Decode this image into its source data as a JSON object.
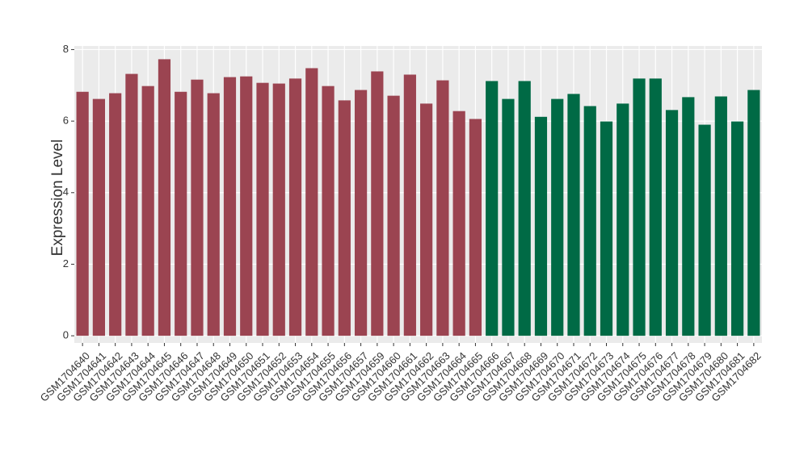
{
  "chart_data": {
    "type": "bar",
    "y_label": "Expression Level",
    "categories": [
      "GSM1704640",
      "GSM1704641",
      "GSM1704642",
      "GSM1704643",
      "GSM1704644",
      "GSM1704645",
      "GSM1704646",
      "GSM1704647",
      "GSM1704648",
      "GSM1704649",
      "GSM1704650",
      "GSM1704651",
      "GSM1704652",
      "GSM1704653",
      "GSM1704654",
      "GSM1704655",
      "GSM1704656",
      "GSM1704657",
      "GSM1704659",
      "GSM1704660",
      "GSM1704661",
      "GSM1704662",
      "GSM1704663",
      "GSM1704664",
      "GSM1704665",
      "GSM1704666",
      "GSM1704667",
      "GSM1704668",
      "GSM1704669",
      "GSM1704670",
      "GSM1704671",
      "GSM1704672",
      "GSM1704673",
      "GSM1704674",
      "GSM1704675",
      "GSM1704676",
      "GSM1704677",
      "GSM1704678",
      "GSM1704679",
      "GSM1704680",
      "GSM1704681",
      "GSM1704682"
    ],
    "values": [
      6.82,
      6.62,
      6.78,
      7.32,
      6.98,
      7.73,
      6.82,
      7.16,
      6.78,
      7.23,
      7.25,
      7.07,
      7.05,
      7.19,
      7.48,
      6.98,
      6.58,
      6.87,
      7.39,
      6.71,
      7.3,
      6.49,
      7.14,
      6.28,
      6.06,
      7.12,
      6.62,
      7.12,
      6.12,
      6.62,
      6.76,
      6.42,
      5.99,
      6.49,
      7.19,
      7.19,
      6.31,
      6.67,
      5.9,
      6.69,
      5.99,
      6.87
    ],
    "colors": [
      "#9b4451",
      "#9b4451",
      "#9b4451",
      "#9b4451",
      "#9b4451",
      "#9b4451",
      "#9b4451",
      "#9b4451",
      "#9b4451",
      "#9b4451",
      "#9b4451",
      "#9b4451",
      "#9b4451",
      "#9b4451",
      "#9b4451",
      "#9b4451",
      "#9b4451",
      "#9b4451",
      "#9b4451",
      "#9b4451",
      "#9b4451",
      "#9b4451",
      "#9b4451",
      "#9b4451",
      "#9b4451",
      "#006a45",
      "#006a45",
      "#006a45",
      "#006a45",
      "#006a45",
      "#006a45",
      "#006a45",
      "#006a45",
      "#006a45",
      "#006a45",
      "#006a45",
      "#006a45",
      "#006a45",
      "#006a45",
      "#006a45",
      "#006a45",
      "#006a45"
    ],
    "ylim": [
      -0.2,
      8.1
    ],
    "yticks": [
      0,
      2,
      4,
      6,
      8
    ],
    "grid": true
  }
}
